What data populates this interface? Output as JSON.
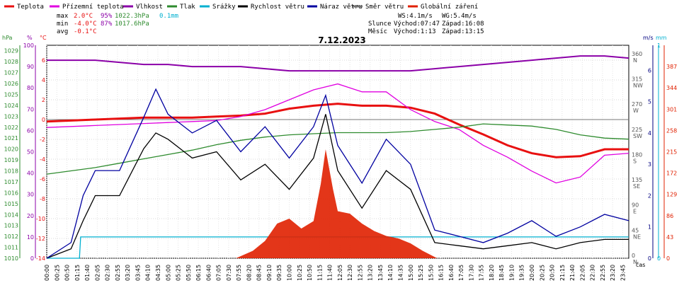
{
  "legend": [
    {
      "label": "Teplota",
      "color": "#e81010"
    },
    {
      "label": "Přízemní teplota",
      "color": "#e000e0"
    },
    {
      "label": "Vlhkost",
      "color": "#8b00a8"
    },
    {
      "label": "Tlak",
      "color": "#2e8b2e"
    },
    {
      "label": "Srážky",
      "color": "#00b0d0"
    },
    {
      "label": "Rychlost větru",
      "color": "#000000"
    },
    {
      "label": "Náraz větru",
      "color": "#0000a0"
    },
    {
      "label": "Směr větru",
      "color": "#707070"
    },
    {
      "label": "Globální záření",
      "color": "#e02000"
    }
  ],
  "stats": {
    "max_label": "max",
    "max_temp": "2.0°C",
    "max_hum": "95%",
    "max_press": "1022.3hPa",
    "rain_total": "0.1mm",
    "min_label": "min",
    "min_temp": "-4.0°C",
    "min_hum": "87%",
    "min_press": "1017.6hPa",
    "avg_label": "avg",
    "avg_temp": "-0.1°C"
  },
  "info": {
    "ws": "WS:4.1m/s",
    "wg": "WG:5.4m/s",
    "sun_label": "Slunce",
    "sun_rise": "Východ:07:47",
    "sun_set": "Západ:16:08",
    "moon_label": "Měsíc",
    "moon_rise": "Východ:1:13",
    "moon_set": "Západ:13:15"
  },
  "chart_data": {
    "type": "line",
    "title": "7.12.2023",
    "x_time_labels": [
      "00:00",
      "00:25",
      "00:50",
      "01:15",
      "01:40",
      "02:05",
      "02:30",
      "02:55",
      "03:20",
      "03:45",
      "04:10",
      "04:35",
      "05:00",
      "05:25",
      "05:50",
      "06:15",
      "06:40",
      "07:05",
      "07:30",
      "07:55",
      "08:20",
      "08:45",
      "09:10",
      "09:35",
      "10:00",
      "10:25",
      "10:50",
      "11:15",
      "11:40",
      "12:05",
      "12:30",
      "12:55",
      "13:20",
      "13:45",
      "14:10",
      "14:35",
      "15:00",
      "15:25",
      "15:50",
      "16:15",
      "16:40",
      "17:05",
      "17:30",
      "17:55",
      "18:20",
      "18:45",
      "19:10",
      "19:35",
      "20:00",
      "20:25",
      "20:50",
      "21:15",
      "21:40",
      "22:05",
      "22:30",
      "22:55",
      "23:20",
      "23:45"
    ],
    "x_axis_label": "čas",
    "axes": {
      "hpa": {
        "unit": "hPa",
        "ticks": [
          "1010",
          "1011",
          "1012",
          "1013",
          "1014",
          "1015",
          "1016",
          "1017",
          "1018",
          "1019",
          "1020",
          "1021",
          "1022",
          "1023",
          "1024",
          "1025",
          "1026",
          "1027",
          "1028",
          "1029"
        ],
        "range": [
          1010,
          1029.5
        ]
      },
      "pct": {
        "unit": "%",
        "ticks": [
          "0",
          "10",
          "20",
          "30",
          "40",
          "50",
          "60",
          "70",
          "80",
          "90",
          "100"
        ],
        "range": [
          0,
          100
        ]
      },
      "temp": {
        "unit": "°C",
        "ticks": [
          "-14",
          "-12",
          "-10",
          "-8",
          "-6",
          "-4",
          "-2",
          "0",
          "2",
          "4",
          "6"
        ],
        "range": [
          -14,
          7.5
        ]
      },
      "dir": {
        "ticks": [
          {
            "v": 0,
            "deg": "0",
            "dir": "N"
          },
          {
            "v": 45,
            "deg": "45",
            "dir": "NE"
          },
          {
            "v": 90,
            "deg": "90",
            "dir": "E"
          },
          {
            "v": 135,
            "deg": "135",
            "dir": "SE"
          },
          {
            "v": 180,
            "deg": "180",
            "dir": "S"
          },
          {
            "v": 225,
            "deg": "225",
            "dir": "SW"
          },
          {
            "v": 270,
            "deg": "270",
            "dir": "W"
          },
          {
            "v": 315,
            "deg": "315",
            "dir": "NW"
          },
          {
            "v": 360,
            "deg": "360",
            "dir": "N"
          }
        ],
        "range": [
          0,
          380
        ]
      },
      "ms": {
        "unit": "m/s",
        "ticks": [
          "0",
          "1",
          "2",
          "3",
          "4",
          "5",
          "6"
        ],
        "range": [
          0,
          6.8
        ]
      },
      "mm": {
        "unit": "mm",
        "ticks": [
          "0",
          "1"
        ],
        "range": [
          0,
          1
        ]
      },
      "wm2": {
        "ticks": [
          "0",
          "43",
          "86",
          "129",
          "172",
          "215",
          "258",
          "301",
          "344",
          "387"
        ],
        "range": [
          0,
          430
        ]
      }
    },
    "series": [
      {
        "name": "Teplota",
        "axis": "temp",
        "color": "#e81010",
        "x": [
          0,
          1,
          2,
          3,
          4,
          5,
          6,
          7,
          8,
          9,
          10,
          11,
          12,
          13,
          14,
          15,
          16,
          17,
          18,
          19,
          20,
          21,
          22,
          23,
          24
        ],
        "y": [
          -0.2,
          -0.1,
          0.0,
          0.1,
          0.2,
          0.2,
          0.2,
          0.3,
          0.4,
          0.6,
          1.1,
          1.4,
          1.6,
          1.4,
          1.4,
          1.2,
          0.6,
          -0.5,
          -1.5,
          -2.6,
          -3.4,
          -3.8,
          -3.7,
          -3.0,
          -3.0
        ]
      },
      {
        "name": "Přízemní teplota",
        "axis": "temp",
        "color": "#e000e0",
        "x": [
          0,
          1,
          2,
          3,
          4,
          5,
          6,
          7,
          8,
          9,
          10,
          11,
          12,
          13,
          14,
          15,
          16,
          17,
          18,
          19,
          20,
          21,
          22,
          23,
          24
        ],
        "y": [
          -0.8,
          -0.7,
          -0.6,
          -0.5,
          -0.4,
          -0.3,
          -0.2,
          -0.1,
          0.3,
          1.0,
          2.0,
          3.0,
          3.6,
          2.8,
          2.8,
          1.0,
          -0.2,
          -1.0,
          -2.6,
          -3.8,
          -5.2,
          -6.4,
          -5.8,
          -3.6,
          -3.4
        ]
      },
      {
        "name": "Vlhkost",
        "axis": "pct",
        "color": "#8b00a8",
        "x": [
          0,
          1,
          2,
          3,
          4,
          5,
          6,
          7,
          8,
          9,
          10,
          11,
          12,
          13,
          14,
          15,
          16,
          17,
          18,
          19,
          20,
          21,
          22,
          23,
          24
        ],
        "y": [
          93,
          93,
          93,
          92,
          91,
          91,
          90,
          90,
          90,
          89,
          88,
          88,
          88,
          88,
          88,
          88,
          89,
          90,
          91,
          92,
          93,
          94,
          95,
          95,
          94
        ]
      },
      {
        "name": "Tlak",
        "axis": "hpa",
        "color": "#2e8b2e",
        "x": [
          0,
          1,
          2,
          3,
          4,
          5,
          6,
          7,
          8,
          9,
          10,
          11,
          12,
          13,
          14,
          15,
          16,
          17,
          18,
          19,
          20,
          21,
          22,
          23,
          24
        ],
        "y": [
          1017.7,
          1018.0,
          1018.3,
          1018.7,
          1019.1,
          1019.5,
          1019.9,
          1020.4,
          1020.8,
          1021.1,
          1021.3,
          1021.4,
          1021.5,
          1021.5,
          1021.5,
          1021.6,
          1021.8,
          1022.0,
          1022.3,
          1022.2,
          1022.1,
          1021.8,
          1021.3,
          1021.0,
          1020.9
        ]
      },
      {
        "name": "Srážky",
        "axis": "mm",
        "color": "#00b0d0",
        "x": [
          0,
          1.35,
          1.4,
          24
        ],
        "y": [
          0,
          0,
          0.1,
          0.1
        ]
      },
      {
        "name": "Rychlost větru",
        "axis": "ms",
        "color": "#000000",
        "x": [
          0,
          1,
          1.5,
          2,
          3,
          4,
          4.5,
          5,
          6,
          7,
          8,
          9,
          10,
          11,
          11.5,
          12,
          13,
          14,
          15,
          16,
          17,
          18,
          19,
          20,
          21,
          22,
          23,
          24
        ],
        "y": [
          0,
          0.3,
          1.2,
          2.0,
          2.0,
          3.5,
          4.0,
          3.8,
          3.2,
          3.4,
          2.5,
          3.0,
          2.2,
          3.2,
          4.6,
          2.8,
          1.6,
          2.8,
          2.2,
          0.5,
          0.4,
          0.3,
          0.4,
          0.5,
          0.3,
          0.5,
          0.6,
          0.6
        ]
      },
      {
        "name": "Náraz větru",
        "axis": "ms",
        "color": "#0000a0",
        "x": [
          0,
          1,
          1.5,
          2,
          3,
          4,
          4.5,
          5,
          6,
          7,
          8,
          9,
          10,
          11,
          11.5,
          12,
          13,
          14,
          15,
          16,
          17,
          18,
          19,
          20,
          21,
          22,
          23,
          24
        ],
        "y": [
          0,
          0.5,
          2.0,
          2.8,
          2.8,
          4.5,
          5.4,
          4.6,
          4.0,
          4.4,
          3.4,
          4.2,
          3.2,
          4.2,
          5.2,
          3.6,
          2.4,
          3.8,
          3.0,
          0.9,
          0.7,
          0.5,
          0.8,
          1.2,
          0.7,
          1.0,
          1.4,
          1.2
        ]
      },
      {
        "name": "Globální záření",
        "axis": "wm2",
        "color": "#e02000",
        "type": "area",
        "x": [
          7.8,
          8.5,
          9,
          9.5,
          10,
          10.5,
          11,
          11.3,
          11.5,
          11.8,
          12,
          12.5,
          13,
          13.5,
          14,
          14.5,
          15,
          15.5,
          16.1
        ],
        "y": [
          0,
          15,
          35,
          70,
          80,
          60,
          75,
          150,
          220,
          140,
          95,
          90,
          70,
          55,
          45,
          40,
          30,
          15,
          0
        ]
      }
    ]
  }
}
